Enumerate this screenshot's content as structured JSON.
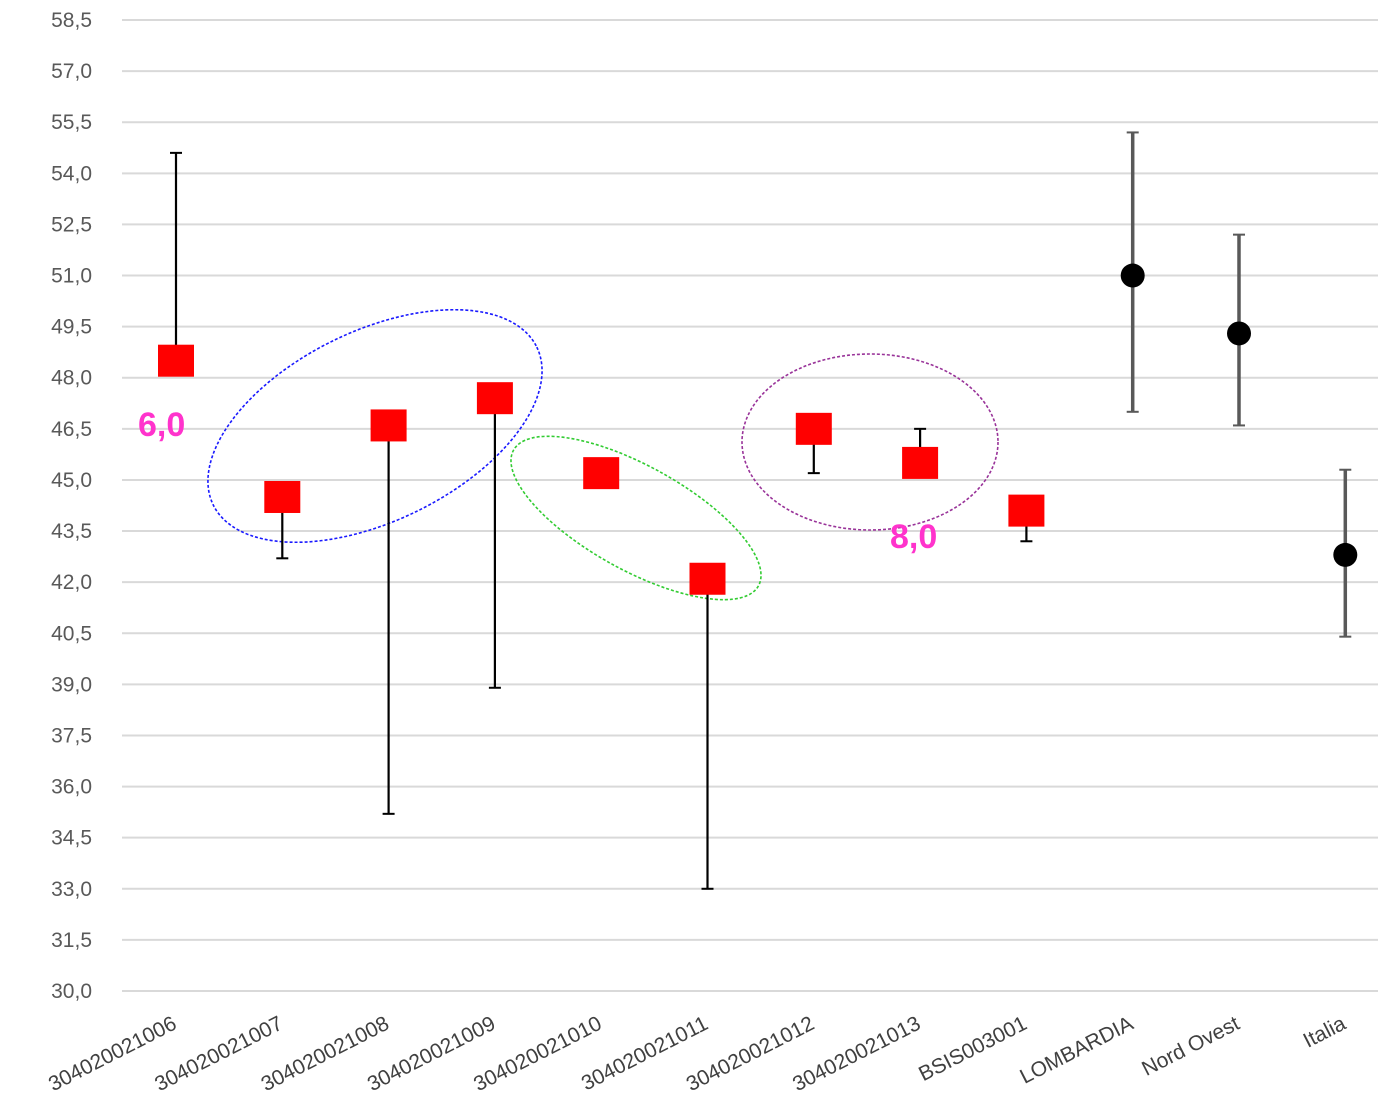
{
  "chart_data": {
    "type": "scatter",
    "title": "",
    "xlabel": "",
    "ylabel": "",
    "ylim": [
      30.0,
      58.5
    ],
    "y_ticks": [
      "30,0",
      "31,5",
      "33,0",
      "34,5",
      "36,0",
      "37,5",
      "39,0",
      "40,5",
      "42,0",
      "43,5",
      "45,0",
      "46,5",
      "48,0",
      "49,5",
      "51,0",
      "52,5",
      "54,0",
      "55,5",
      "57,0",
      "58,5"
    ],
    "y_tick_values": [
      30.0,
      31.5,
      33.0,
      34.5,
      36.0,
      37.5,
      39.0,
      40.5,
      42.0,
      43.5,
      45.0,
      46.5,
      48.0,
      49.5,
      51.0,
      52.5,
      54.0,
      55.5,
      57.0,
      58.5
    ],
    "grid": true,
    "categories": [
      "304020021006",
      "304020021007",
      "304020021008",
      "304020021009",
      "304020021010",
      "304020021011",
      "304020021012",
      "304020021013",
      "BSIS003001",
      "LOMBARDIA",
      "Nord Ovest",
      "Italia"
    ],
    "series": [
      {
        "marker": "square",
        "color": "#ff0000",
        "points": [
          {
            "category": "304020021006",
            "y": 48.5,
            "low": 48.5,
            "high": 54.6
          },
          {
            "category": "304020021007",
            "y": 44.5,
            "low": 42.7,
            "high": 44.6
          },
          {
            "category": "304020021008",
            "y": 46.6,
            "low": 35.2,
            "high": 46.6
          },
          {
            "category": "304020021009",
            "y": 47.4,
            "low": 38.9,
            "high": 47.4
          },
          {
            "category": "304020021010",
            "y": 45.2,
            "low": 44.8,
            "high": 45.3
          },
          {
            "category": "304020021011",
            "y": 42.1,
            "low": 33.0,
            "high": 42.2
          },
          {
            "category": "304020021012",
            "y": 46.5,
            "low": 45.2,
            "high": 46.5
          },
          {
            "category": "304020021013",
            "y": 45.5,
            "low": 45.4,
            "high": 46.5
          },
          {
            "category": "BSIS003001",
            "y": 44.1,
            "low": 43.2,
            "high": 44.1
          }
        ]
      },
      {
        "marker": "circle",
        "color": "#000000",
        "points": [
          {
            "category": "LOMBARDIA",
            "y": 51.0,
            "low": 47.0,
            "high": 55.2
          },
          {
            "category": "Nord Ovest",
            "y": 49.3,
            "low": 46.6,
            "high": 52.2
          },
          {
            "category": "Italia",
            "y": 42.8,
            "low": 40.4,
            "high": 45.3
          }
        ]
      }
    ],
    "annotations": [
      {
        "text": "6,0",
        "near": "304020021006",
        "color": "#ff33cc"
      },
      {
        "text": "8,0",
        "near": "304020021013",
        "color": "#ff33cc"
      }
    ],
    "highlight_groups": [
      {
        "categories": [
          "304020021007",
          "304020021008",
          "304020021009"
        ],
        "color": "#1a1aff"
      },
      {
        "categories": [
          "304020021010",
          "304020021011"
        ],
        "color": "#33cc33"
      },
      {
        "categories": [
          "304020021012",
          "304020021013"
        ],
        "color": "#993399"
      }
    ]
  }
}
